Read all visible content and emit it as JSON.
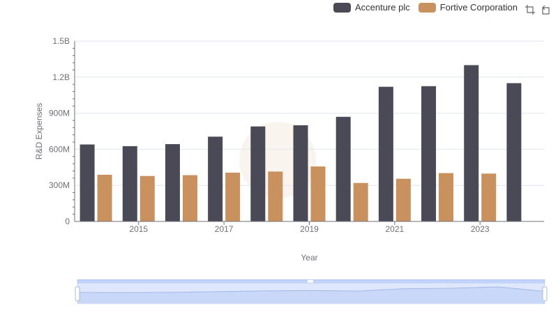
{
  "chart_data": {
    "type": "bar",
    "xlabel": "Year",
    "ylabel": "R&D Expenses",
    "categories": [
      "2014",
      "2015",
      "2016",
      "2017",
      "2018",
      "2019",
      "2020",
      "2021",
      "2022",
      "2023",
      "2024"
    ],
    "x_tick_labels": [
      "2015",
      "2017",
      "2019",
      "2021",
      "2023"
    ],
    "y_tick_labels": [
      "0",
      "300M",
      "600M",
      "900M",
      "1.2B",
      "1.5B"
    ],
    "ylim": [
      0,
      1500000000
    ],
    "grid": true,
    "legend_position": "top-right",
    "series": [
      {
        "name": "Accenture plc",
        "color": "#4a4a56",
        "values": [
          640000000,
          626000000,
          643000000,
          705000000,
          790000000,
          800000000,
          870000000,
          1120000000,
          1125000000,
          1300000000,
          1150000000
        ]
      },
      {
        "name": "Fortive Corporation",
        "color": "#c8915e",
        "values": [
          388000000,
          378000000,
          385000000,
          406000000,
          415000000,
          457000000,
          320000000,
          355000000,
          402000000,
          398000000,
          null
        ]
      }
    ],
    "overview_slider": {
      "range_start_fraction": 0,
      "range_end_fraction": 1
    }
  }
}
